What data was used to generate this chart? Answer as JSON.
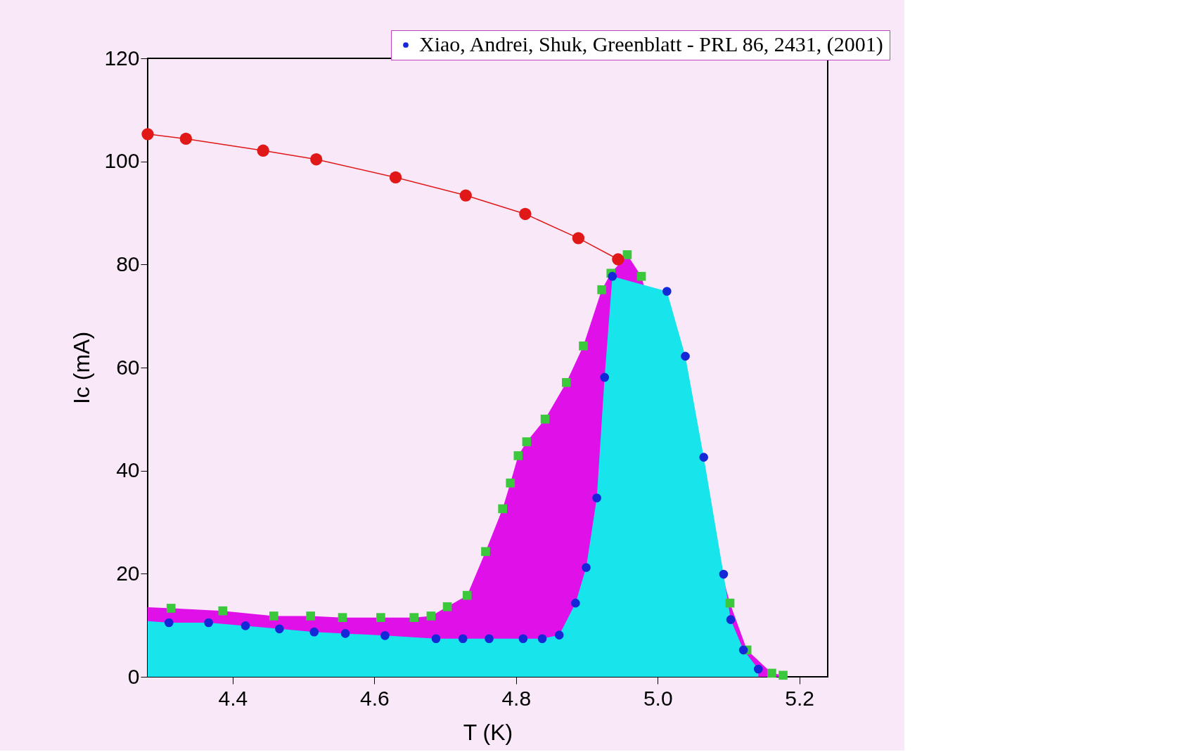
{
  "chart_data": {
    "type": "line",
    "xlabel": "T  (K)",
    "ylabel": "Ic (mA)",
    "xlim": [
      4.28,
      5.24
    ],
    "ylim": [
      0,
      120
    ],
    "xticks": [
      {
        "value": 4.4,
        "label": "4.4"
      },
      {
        "value": 4.6,
        "label": "4.6"
      },
      {
        "value": 4.8,
        "label": "4.8"
      },
      {
        "value": 5.0,
        "label": "5.0"
      },
      {
        "value": 5.2,
        "label": "5.2"
      }
    ],
    "yticks": [
      0,
      20,
      40,
      60,
      80,
      100,
      120
    ],
    "grid": false,
    "legend": "top",
    "series": [
      {
        "type": "area",
        "color": "#e010e8",
        "marker": "none",
        "x": [
          4.28,
          4.313,
          4.386,
          4.458,
          4.51,
          4.555,
          4.609,
          4.656,
          4.68,
          4.703,
          4.731,
          4.757,
          4.781,
          4.792,
          4.803,
          4.815,
          4.841,
          4.871,
          4.895,
          4.921,
          4.934,
          4.957,
          4.977,
          5.102,
          5.126,
          5.161,
          5.177
        ],
        "values": [
          13.5,
          13.3,
          12.8,
          11.8,
          11.8,
          11.5,
          11.5,
          11.5,
          11.8,
          13.6,
          15.8,
          24.3,
          32.6,
          37.6,
          42.9,
          45.6,
          50.0,
          57.1,
          64.2,
          75.1,
          78.3,
          81.9,
          77.7,
          14.3,
          5.2,
          0.7,
          0.3
        ]
      },
      {
        "type": "area",
        "color": "#18e4ec",
        "marker": "none",
        "x": [
          4.28,
          4.31,
          4.366,
          4.418,
          4.466,
          4.515,
          4.559,
          4.615,
          4.687,
          4.725,
          4.762,
          4.81,
          4.837,
          4.861,
          4.884,
          4.899,
          4.914,
          4.925,
          4.936,
          5.013,
          5.039,
          5.065,
          5.093,
          5.103,
          5.121,
          5.142
        ],
        "values": [
          10.8,
          10.5,
          10.5,
          9.9,
          9.3,
          8.7,
          8.4,
          8.0,
          7.4,
          7.4,
          7.4,
          7.4,
          7.4,
          8.1,
          14.3,
          21.2,
          34.7,
          58.1,
          77.7,
          74.8,
          62.2,
          42.6,
          19.9,
          11.1,
          5.2,
          1.5
        ]
      },
      {
        "type": "scatter",
        "color": "#3cc83c",
        "marker": "square",
        "x": [
          4.313,
          4.386,
          4.458,
          4.51,
          4.555,
          4.609,
          4.656,
          4.68,
          4.703,
          4.731,
          4.757,
          4.781,
          4.792,
          4.803,
          4.815,
          4.841,
          4.871,
          4.895,
          4.921,
          4.934,
          4.957,
          4.977,
          5.102,
          5.126,
          5.161,
          5.177
        ],
        "values": [
          13.3,
          12.8,
          11.8,
          11.8,
          11.5,
          11.5,
          11.5,
          11.8,
          13.6,
          15.8,
          24.3,
          32.6,
          37.6,
          42.9,
          45.6,
          50.0,
          57.1,
          64.2,
          75.1,
          78.3,
          81.9,
          77.7,
          14.3,
          5.2,
          0.7,
          0.3
        ]
      },
      {
        "type": "scatter",
        "name": "Xiao, Andrei, Shuk, Greenblatt - PRL 86, 2431, (2001)",
        "color": "#1428d8",
        "marker": "circle",
        "x": [
          4.31,
          4.366,
          4.418,
          4.466,
          4.515,
          4.559,
          4.615,
          4.687,
          4.725,
          4.762,
          4.81,
          4.837,
          4.861,
          4.884,
          4.899,
          4.914,
          4.925,
          4.936,
          5.013,
          5.039,
          5.065,
          5.093,
          5.103,
          5.121,
          5.142
        ],
        "values": [
          10.5,
          10.5,
          9.9,
          9.3,
          8.7,
          8.4,
          8.0,
          7.4,
          7.4,
          7.4,
          7.4,
          7.4,
          8.1,
          14.3,
          21.2,
          34.7,
          58.1,
          77.7,
          74.8,
          62.2,
          42.6,
          19.9,
          11.1,
          5.2,
          1.5
        ]
      },
      {
        "type": "line",
        "color": "#e01818",
        "marker": "circle",
        "x": [
          4.28,
          4.334,
          4.443,
          4.518,
          4.63,
          4.729,
          4.813,
          4.888,
          4.944
        ],
        "values": [
          105.3,
          104.4,
          102.1,
          100.4,
          96.9,
          93.4,
          89.8,
          85.1,
          81.0
        ]
      }
    ]
  }
}
